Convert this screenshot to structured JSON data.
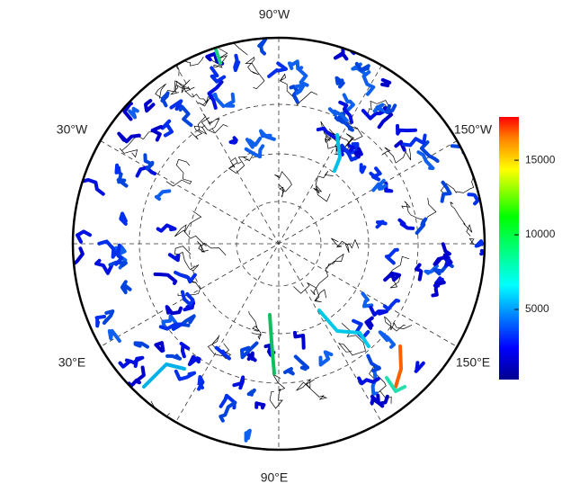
{
  "map": {
    "longitude_labels": [
      "90°W",
      "30°W",
      "150°W",
      "30°E",
      "150°E",
      "90°E"
    ]
  },
  "colorbar": {
    "lim": [
      300,
      17900
    ],
    "ticks": [
      5000,
      10000,
      15000
    ]
  }
}
